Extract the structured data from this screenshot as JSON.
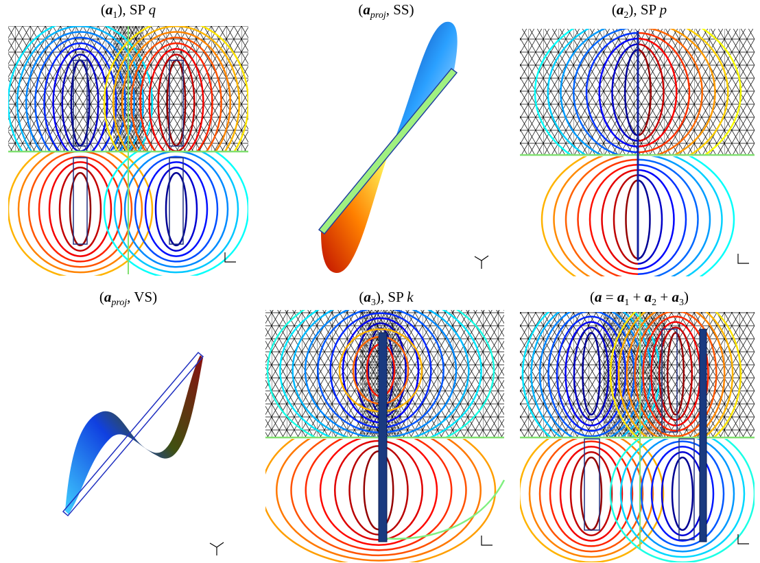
{
  "panels": [
    {
      "title": {
        "open": "(",
        "sym": "a",
        "sub": "1",
        "mid": "), SP ",
        "var": "q"
      }
    },
    {
      "title": {
        "open": "(",
        "sym": "a",
        "sub": "proj",
        "close": ", SS)"
      }
    },
    {
      "title": {
        "open": "(",
        "sym": "a",
        "sub": "2",
        "mid": "), SP ",
        "var": "p"
      }
    },
    {
      "title": {
        "open": "(",
        "sym": "a",
        "sub": "proj",
        "close": ", VS)"
      }
    },
    {
      "title": {
        "open": "(",
        "sym": "a",
        "sub": "3",
        "mid": "), SP ",
        "var": "k"
      }
    },
    {
      "title": {
        "open": "(",
        "sym": "a",
        "eq": " = ",
        "terms": [
          {
            "sym": "a",
            "sub": "1"
          },
          {
            "sym": "a",
            "sub": "2"
          },
          {
            "sym": "a",
            "sub": "3"
          }
        ],
        "plus": " + ",
        "close": ")"
      }
    }
  ]
}
